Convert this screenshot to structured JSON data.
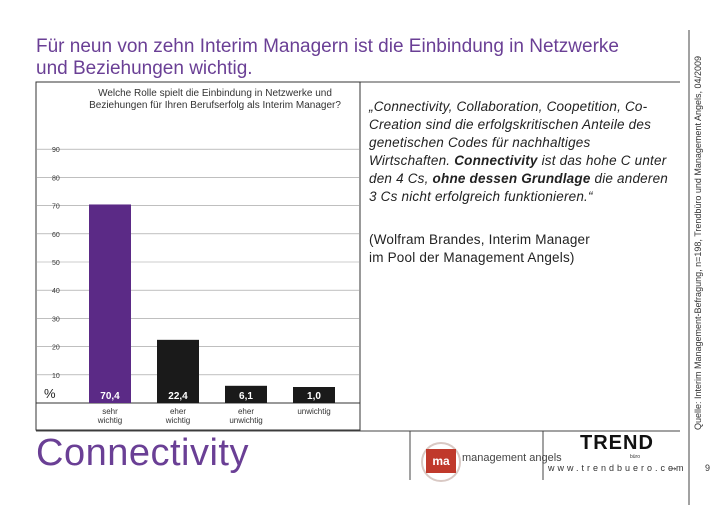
{
  "headline": {
    "line1": "Für neun von zehn Interim Managern ist die Einbindung in Netzwerke",
    "line2": "und Beziehungen wichtig."
  },
  "question": {
    "line1": "Welche Rolle spielt die Einbindung in Netzwerke und",
    "line2": "Beziehungen für Ihren Berufserfolg als Interim Manager?"
  },
  "quote": {
    "part1": "„Connectivity, Collaboration, Coopetition, Co-Creation sind die erfolgskritischen Anteile des genetischen Codes für nachhaltiges Wirtschaften. ",
    "bold1": "Connectivity",
    "part2": " ist das hohe C unter den 4 Cs, ",
    "bold2": "ohne dessen Grundlage",
    "part3": " die anderen 3 Cs nicht erfolgreich funktionieren.“"
  },
  "citation": {
    "line1": "(Wolfram Brandes, Interim Manager",
    "line2": "im Pool der Management Angels)"
  },
  "source": "Quelle: Interim Management-Befragung, n=198, Trendbüro und Management Angels, 04/2009",
  "unit_label": "%",
  "chart_data": {
    "type": "bar",
    "title": "Welche Rolle spielt die Einbindung in Netzwerke und Beziehungen für Ihren Berufserfolg als Interim Manager?",
    "categories": [
      {
        "line1": "sehr",
        "line2": "wichtig"
      },
      {
        "line1": "eher",
        "line2": "wichtig"
      },
      {
        "line1": "eher",
        "line2": "unwichtig"
      },
      {
        "line1": "",
        "line2": "unwichtig"
      }
    ],
    "values": [
      70.4,
      22.4,
      6.1,
      1.0
    ],
    "value_labels": [
      "70,4",
      "22,4",
      "6,1",
      "1,0"
    ],
    "bar_colors": [
      "#5b2a86",
      "#1a1a1a",
      "#1a1a1a",
      "#1a1a1a"
    ],
    "yticks": [
      10,
      20,
      30,
      40,
      50,
      60,
      70,
      80,
      90
    ],
    "ylim": [
      0,
      100
    ],
    "ylabel": "%",
    "grid": true
  },
  "footer": {
    "title": "Connectivity",
    "ma_mark": "ma",
    "ma_name": "management angels",
    "trend_logo": "TREND",
    "trend_sub": "büro",
    "website": "www.trendbuero.com",
    "arrow": "→",
    "page_number": "9"
  },
  "colors": {
    "accent": "#6a3f95",
    "bar_primary": "#5b2a86",
    "bar_dark": "#1a1a1a",
    "ma_red": "#c0392b"
  }
}
